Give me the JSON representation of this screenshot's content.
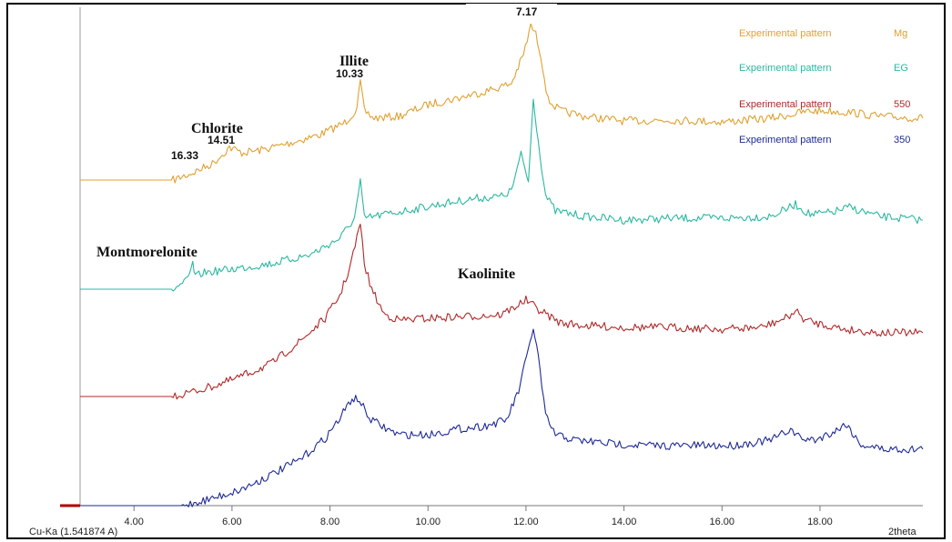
{
  "chart_data": {
    "type": "line",
    "title": "",
    "xlabel": "2theta",
    "ylabel": "",
    "xlim": [
      2.9,
      20.1
    ],
    "x_ticks": [
      "4.00",
      "6.00",
      "8.00",
      "10.00",
      "12.00",
      "14.00",
      "16.00",
      "18.00"
    ],
    "x_tick_values": [
      4,
      6,
      8,
      10,
      12,
      14,
      16,
      18
    ],
    "grid": false,
    "legend_position": "top-right",
    "radiation_label": "Cu-Ka (1.541874 A)",
    "series": [
      {
        "name": "Mg",
        "legend_label": "Experimental pattern",
        "color": "#e0a030",
        "baseline": 198,
        "x": [
          2.9,
          4.8,
          5.2,
          5.6,
          5.8,
          5.95,
          6.2,
          6.6,
          7.2,
          7.8,
          8.3,
          8.55,
          8.62,
          8.7,
          8.9,
          9.4,
          10.0,
          10.6,
          11.2,
          11.7,
          11.95,
          12.1,
          12.2,
          12.3,
          12.45,
          12.7,
          13.2,
          14.0,
          15.0,
          16.0,
          17.0,
          17.4,
          17.8,
          18.2,
          18.7,
          19.2,
          20.1
        ],
        "y": [
          198,
          198,
          190,
          180,
          170,
          162,
          168,
          165,
          157,
          148,
          135,
          120,
          90,
          122,
          130,
          128,
          115,
          108,
          100,
          92,
          60,
          28,
          38,
          60,
          110,
          122,
          128,
          133,
          132,
          134,
          130,
          126,
          122,
          122,
          124,
          128,
          130
        ]
      },
      {
        "name": "EG",
        "legend_label": "Experimental pattern",
        "color": "#2ab8a0",
        "baseline": 318,
        "x": [
          2.9,
          4.8,
          5.1,
          5.2,
          5.25,
          5.4,
          6.0,
          6.8,
          7.6,
          8.2,
          8.5,
          8.62,
          8.7,
          8.9,
          9.5,
          10.2,
          11.0,
          11.5,
          11.7,
          11.9,
          12.05,
          12.15,
          12.25,
          12.4,
          12.6,
          13.2,
          14.0,
          15.0,
          16.0,
          17.0,
          17.5,
          17.8,
          18.2,
          18.6,
          19.2,
          20.1
        ],
        "y": [
          318,
          318,
          308,
          290,
          305,
          300,
          296,
          290,
          280,
          262,
          240,
          200,
          240,
          238,
          232,
          225,
          218,
          216,
          210,
          170,
          200,
          108,
          155,
          215,
          232,
          238,
          242,
          240,
          240,
          238,
          225,
          236,
          234,
          228,
          238,
          242
        ]
      },
      {
        "name": "550",
        "legend_label": "Experimental pattern",
        "color": "#b02828",
        "baseline": 436,
        "x": [
          2.9,
          4.8,
          5.4,
          6.0,
          6.8,
          7.4,
          7.9,
          8.2,
          8.4,
          8.55,
          8.62,
          8.7,
          8.85,
          9.1,
          9.4,
          10.0,
          10.8,
          11.5,
          12.0,
          12.3,
          12.7,
          13.2,
          14.0,
          15.0,
          16.0,
          16.8,
          17.3,
          17.5,
          17.7,
          18.0,
          18.5,
          19.2,
          20.1
        ],
        "y": [
          436,
          436,
          428,
          418,
          400,
          375,
          350,
          325,
          295,
          262,
          245,
          290,
          318,
          345,
          352,
          350,
          348,
          346,
          330,
          342,
          355,
          358,
          360,
          360,
          362,
          360,
          350,
          342,
          352,
          356,
          362,
          366,
          366
        ]
      },
      {
        "name": "350",
        "legend_label": "Experimental pattern",
        "color": "#1e2a96",
        "baseline": 556,
        "x": [
          2.9,
          5.0,
          5.6,
          6.2,
          6.8,
          7.4,
          7.9,
          8.2,
          8.45,
          8.6,
          8.8,
          9.1,
          9.4,
          10.0,
          10.6,
          11.2,
          11.6,
          11.85,
          12.05,
          12.15,
          12.25,
          12.4,
          12.6,
          13.0,
          13.8,
          14.6,
          15.4,
          16.2,
          17.0,
          17.4,
          17.6,
          17.9,
          18.3,
          18.55,
          18.8,
          19.3,
          20.1
        ],
        "y": [
          556,
          556,
          548,
          538,
          522,
          505,
          482,
          460,
          438,
          440,
          460,
          470,
          478,
          478,
          472,
          468,
          462,
          430,
          385,
          360,
          392,
          458,
          478,
          484,
          488,
          490,
          490,
          490,
          484,
          472,
          482,
          484,
          474,
          466,
          488,
          494,
          494
        ]
      }
    ],
    "annotations": [
      {
        "label": "Chlorite",
        "x": 5.9
      },
      {
        "label": "14.51",
        "x": 6.0
      },
      {
        "label": "16.33",
        "x": 5.3
      },
      {
        "label": "Illite",
        "x": 8.6
      },
      {
        "label": "10.33",
        "x": 8.6
      },
      {
        "label": "7.17",
        "x": 12.1
      },
      {
        "label": "Montmorelonite",
        "x": 5.2
      },
      {
        "label": "Kaolinite",
        "x": 11.0
      }
    ]
  }
}
